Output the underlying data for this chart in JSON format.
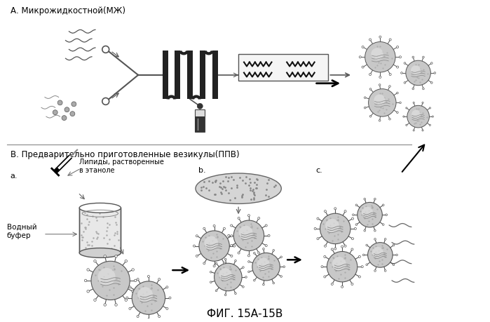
{
  "title": "ФИГ. 15А-15В",
  "label_A": "А. Микрожидкостной(МЖ)",
  "label_B": "В. Предварительно приготовленные везикулы(ППВ)",
  "label_a": "a.",
  "label_b": "b.",
  "label_c": "c.",
  "label_lipids": "Липиды, растворенные\nв этаноле",
  "label_water": "Водный\nбуфер",
  "bg_color": "#ffffff",
  "line_color": "#000000",
  "gray_light": "#cccccc",
  "gray_med": "#999999",
  "gray_dark": "#555555",
  "figsize": [
    6.99,
    4.6
  ],
  "dpi": 100
}
